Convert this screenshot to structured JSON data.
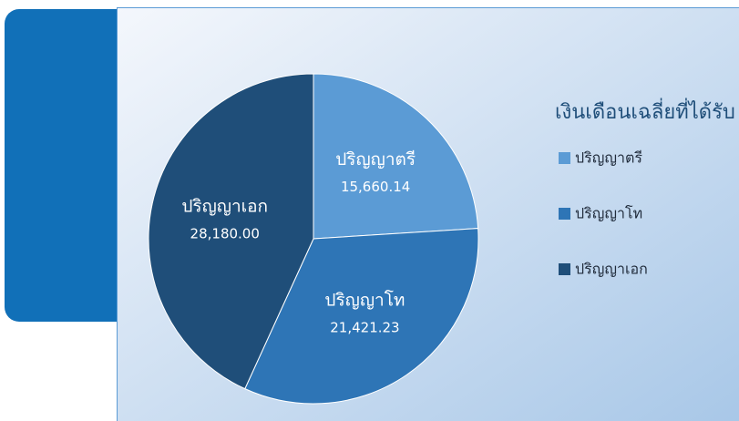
{
  "chart_data": {
    "type": "pie",
    "title": "เงินเดือนเฉลี่ยที่ได้รับ",
    "categories": [
      "ปริญญาตรี",
      "ปริญญาโท",
      "ปริญญาเอก"
    ],
    "values": [
      15660.14,
      21421.23,
      28180.0
    ],
    "value_labels": [
      "15,660.14",
      "21,421.23",
      "28,180.00"
    ],
    "colors": [
      "#5b9bd5",
      "#2e75b6",
      "#1f4e79"
    ],
    "legend": "right"
  }
}
